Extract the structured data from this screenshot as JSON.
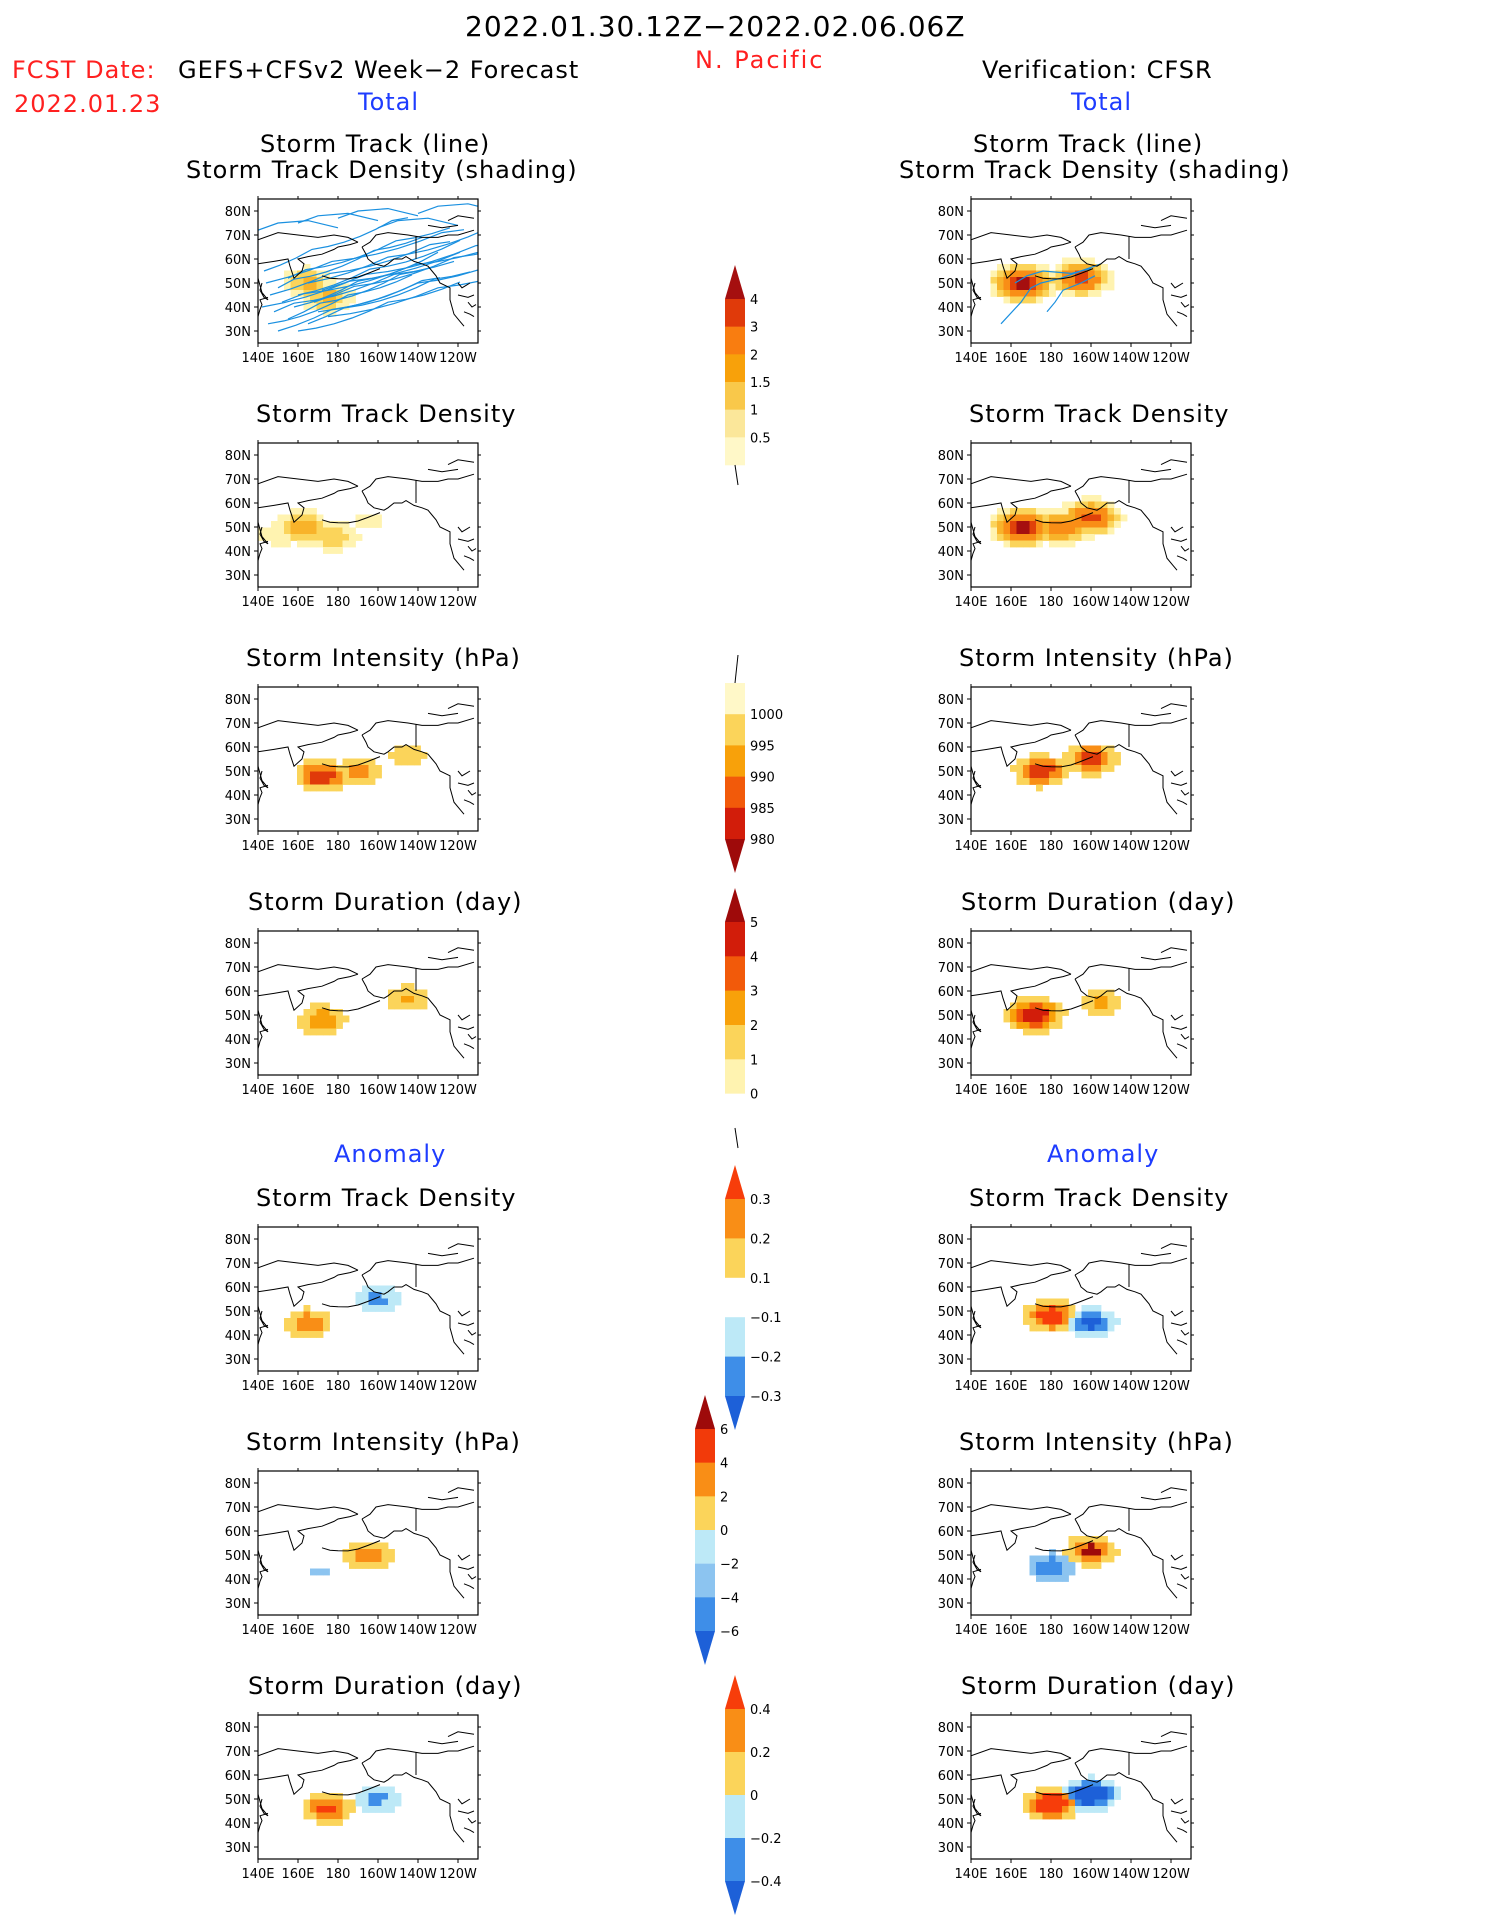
{
  "header": {
    "date_range": "2022.01.30.12Z−2022.02.06.06Z",
    "region": "N. Pacific",
    "fcst_label": "FCST Date:",
    "fcst_model": "GEFS+CFSv2 Week−2 Forecast",
    "fcst_date": "2022.01.23",
    "verification": "Verification: CFSR",
    "total_left": "Total",
    "total_right": "Total",
    "anomaly_left": "Anomaly",
    "anomaly_right": "Anomaly"
  },
  "panel_titles": {
    "track_line": "Storm Track (line)",
    "track_shading": "Storm Track Density (shading)",
    "density": "Storm Track Density",
    "intensity": "Storm Intensity (hPa)",
    "duration": "Storm Duration (day)"
  },
  "axes": {
    "lat_labels": [
      "80N",
      "70N",
      "60N",
      "50N",
      "40N",
      "30N"
    ],
    "lon_labels": [
      "140E",
      "160E",
      "180",
      "160W",
      "140W",
      "120W"
    ]
  },
  "colorbars": [
    {
      "id": "density_total",
      "labels": [
        "4",
        "3",
        "2",
        "1.5",
        "1",
        "0.5"
      ],
      "colors": [
        "#a50f0f",
        "#e03a0a",
        "#f97d10",
        "#f8a10a",
        "#f9c84a",
        "#fbe79a",
        "#fff8c8"
      ]
    },
    {
      "id": "intensity_total",
      "labels": [
        "1000",
        "995",
        "990",
        "985",
        "980"
      ],
      "colors": [
        "#fff8c8",
        "#fbd45a",
        "#f8a10a",
        "#f25a0a",
        "#d21d0a",
        "#9e0a0a"
      ]
    },
    {
      "id": "duration_total",
      "labels": [
        "5",
        "4",
        "3",
        "2",
        "1",
        "0"
      ],
      "colors": [
        "#9e0a0a",
        "#d21d0a",
        "#f25a0a",
        "#f8a10a",
        "#fbd45a",
        "#fff3b0",
        "#ffffff"
      ]
    },
    {
      "id": "density_anom",
      "labels": [
        "0.3",
        "0.2",
        "0.1",
        "−0.1",
        "−0.2",
        "−0.3"
      ],
      "colors": [
        "#f73d0a",
        "#f98e16",
        "#fbd45a",
        "#ffffff",
        "#bde9f7",
        "#3e8ee8",
        "#1d60d8"
      ]
    },
    {
      "id": "intensity_anom",
      "labels": [
        "6",
        "4",
        "2",
        "0",
        "−2",
        "−4",
        "−6"
      ],
      "colors": [
        "#9e0a0a",
        "#f23a0a",
        "#f98e16",
        "#fbd45a",
        "#bde9f7",
        "#8cc4f0",
        "#3e8ee8",
        "#1d60d8"
      ]
    },
    {
      "id": "duration_anom",
      "labels": [
        "0.4",
        "0.2",
        "0",
        "−0.2",
        "−0.4"
      ],
      "colors": [
        "#f73d0a",
        "#f98e16",
        "#fbd45a",
        "#bde9f7",
        "#3e8ee8",
        "#1d60d8"
      ]
    }
  ],
  "chart_data": [
    {
      "type": "heatmap",
      "title": "Storm Track (line) / Storm Track Density (shading)",
      "source": "forecast",
      "blobs": [
        {
          "lon": 165,
          "lat": 50,
          "value": 1.5
        },
        {
          "lon": 175,
          "lat": 44,
          "value": 1.5
        }
      ]
    },
    {
      "type": "heatmap",
      "title": "Storm Track Density",
      "source": "forecast",
      "blobs": [
        {
          "lon": 162,
          "lat": 50,
          "value": 1.8
        },
        {
          "lon": 178,
          "lat": 46,
          "value": 1.3
        },
        {
          "lon": 150,
          "lat": 47,
          "value": 0.8
        },
        {
          "lon": 195,
          "lat": 52,
          "value": 0.6
        }
      ]
    },
    {
      "type": "heatmap",
      "title": "Storm Intensity (hPa)",
      "source": "forecast",
      "blobs": [
        {
          "lon": 172,
          "lat": 48,
          "value": 982
        },
        {
          "lon": 190,
          "lat": 50,
          "value": 988
        },
        {
          "lon": 215,
          "lat": 57,
          "value": 992
        }
      ]
    },
    {
      "type": "heatmap",
      "title": "Storm Duration (day)",
      "source": "forecast",
      "blobs": [
        {
          "lon": 172,
          "lat": 48,
          "value": 2.6
        },
        {
          "lon": 215,
          "lat": 57,
          "value": 2.0
        }
      ]
    },
    {
      "type": "heatmap",
      "title": "Storm Track Density (anomaly)",
      "source": "forecast",
      "blobs": [
        {
          "lon": 165,
          "lat": 45,
          "value": 0.25
        },
        {
          "lon": 200,
          "lat": 55,
          "value": -0.2
        }
      ]
    },
    {
      "type": "heatmap",
      "title": "Storm Intensity (hPa) (anomaly)",
      "source": "forecast",
      "blobs": [
        {
          "lon": 195,
          "lat": 50,
          "value": 5
        },
        {
          "lon": 170,
          "lat": 43,
          "value": -2
        }
      ]
    },
    {
      "type": "heatmap",
      "title": "Storm Duration (day) (anomaly)",
      "source": "forecast",
      "blobs": [
        {
          "lon": 175,
          "lat": 46,
          "value": 0.3
        },
        {
          "lon": 200,
          "lat": 50,
          "value": -0.2
        }
      ]
    },
    {
      "type": "heatmap",
      "title": "Storm Track (line) / Storm Track Density (shading)",
      "source": "CFSR",
      "blobs": [
        {
          "lon": 166,
          "lat": 50,
          "value": 4
        },
        {
          "lon": 195,
          "lat": 52,
          "value": 3
        }
      ]
    },
    {
      "type": "heatmap",
      "title": "Storm Track Density",
      "source": "CFSR",
      "blobs": [
        {
          "lon": 166,
          "lat": 50,
          "value": 4
        },
        {
          "lon": 185,
          "lat": 50,
          "value": 2.5
        },
        {
          "lon": 200,
          "lat": 54,
          "value": 3
        }
      ]
    },
    {
      "type": "heatmap",
      "title": "Storm Intensity (hPa)",
      "source": "CFSR",
      "blobs": [
        {
          "lon": 175,
          "lat": 50,
          "value": 982
        },
        {
          "lon": 200,
          "lat": 55,
          "value": 983
        }
      ]
    },
    {
      "type": "heatmap",
      "title": "Storm Duration (day)",
      "source": "CFSR",
      "blobs": [
        {
          "lon": 172,
          "lat": 50,
          "value": 4.5
        },
        {
          "lon": 205,
          "lat": 55,
          "value": 2.0
        }
      ]
    },
    {
      "type": "heatmap",
      "title": "Storm Track Density (anomaly)",
      "source": "CFSR",
      "blobs": [
        {
          "lon": 180,
          "lat": 48,
          "value": 0.35
        },
        {
          "lon": 200,
          "lat": 45,
          "value": -0.3
        }
      ]
    },
    {
      "type": "heatmap",
      "title": "Storm Intensity (hPa) (anomaly)",
      "source": "CFSR",
      "blobs": [
        {
          "lon": 200,
          "lat": 52,
          "value": 6
        },
        {
          "lon": 180,
          "lat": 45,
          "value": -5
        }
      ]
    },
    {
      "type": "heatmap",
      "title": "Storm Duration (day) (anomaly)",
      "source": "CFSR",
      "blobs": [
        {
          "lon": 180,
          "lat": 48,
          "value": 0.4
        },
        {
          "lon": 200,
          "lat": 52,
          "value": -0.4
        }
      ]
    }
  ]
}
